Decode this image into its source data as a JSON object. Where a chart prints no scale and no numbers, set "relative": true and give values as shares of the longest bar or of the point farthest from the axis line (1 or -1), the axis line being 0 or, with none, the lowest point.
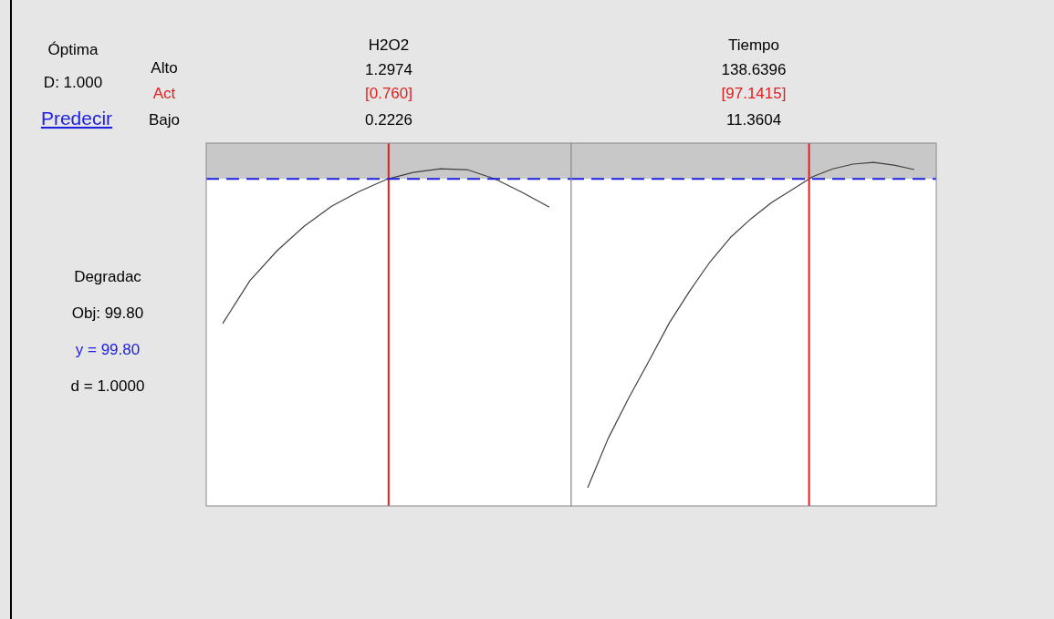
{
  "chart_data": [
    {
      "type": "other",
      "annotations": [
        "Óptima",
        "D: 1.000",
        "Predecir",
        "Alto",
        "Act",
        "Bajo",
        "Degradac",
        "Obj: 99.80",
        "y = 99.80",
        "d = 1.0000"
      ]
    },
    {
      "type": "line",
      "title": "H2O2",
      "relative": true,
      "color": "#404040",
      "annotations": [
        "1.2974",
        "[0.760]",
        "0.2226"
      ],
      "categories": [
        null,
        null,
        null,
        null,
        null,
        null,
        null,
        null,
        null,
        null,
        null,
        null,
        null
      ],
      "values": [
        0.541,
        0.668,
        0.757,
        0.83,
        0.889,
        0.932,
        0.968,
        0.989,
        1.0,
        0.997,
        0.97,
        0.93,
        0.886
      ],
      "ref_lines": [
        {
          "axis": "y",
          "value": 0.97,
          "color": "#2020e0",
          "line_style": "dashed"
        }
      ],
      "bands": [
        {
          "axis": "y",
          "from": 0.97,
          "to": 1.076,
          "color": "#c8c8c8"
        }
      ]
    },
    {
      "type": "line",
      "title": "Tiempo",
      "relative": true,
      "color": "#404040",
      "annotations": [
        "138.6396",
        "[97.1415]",
        "11.3604"
      ],
      "categories": [
        null,
        null,
        null,
        null,
        null,
        null,
        null,
        null,
        null,
        null,
        null,
        null,
        null,
        null,
        null,
        null,
        null
      ],
      "values": [
        0.053,
        0.196,
        0.313,
        0.422,
        0.533,
        0.626,
        0.711,
        0.782,
        0.836,
        0.883,
        0.92,
        0.958,
        0.981,
        0.995,
        1.0,
        0.992,
        0.979
      ],
      "ref_lines": [
        {
          "axis": "y",
          "value": 0.952,
          "color": "#2020e0",
          "line_style": "dashed"
        }
      ],
      "bands": [
        {
          "axis": "y",
          "from": 0.952,
          "to": 1.056,
          "color": "#c8c8c8"
        }
      ]
    }
  ]
}
